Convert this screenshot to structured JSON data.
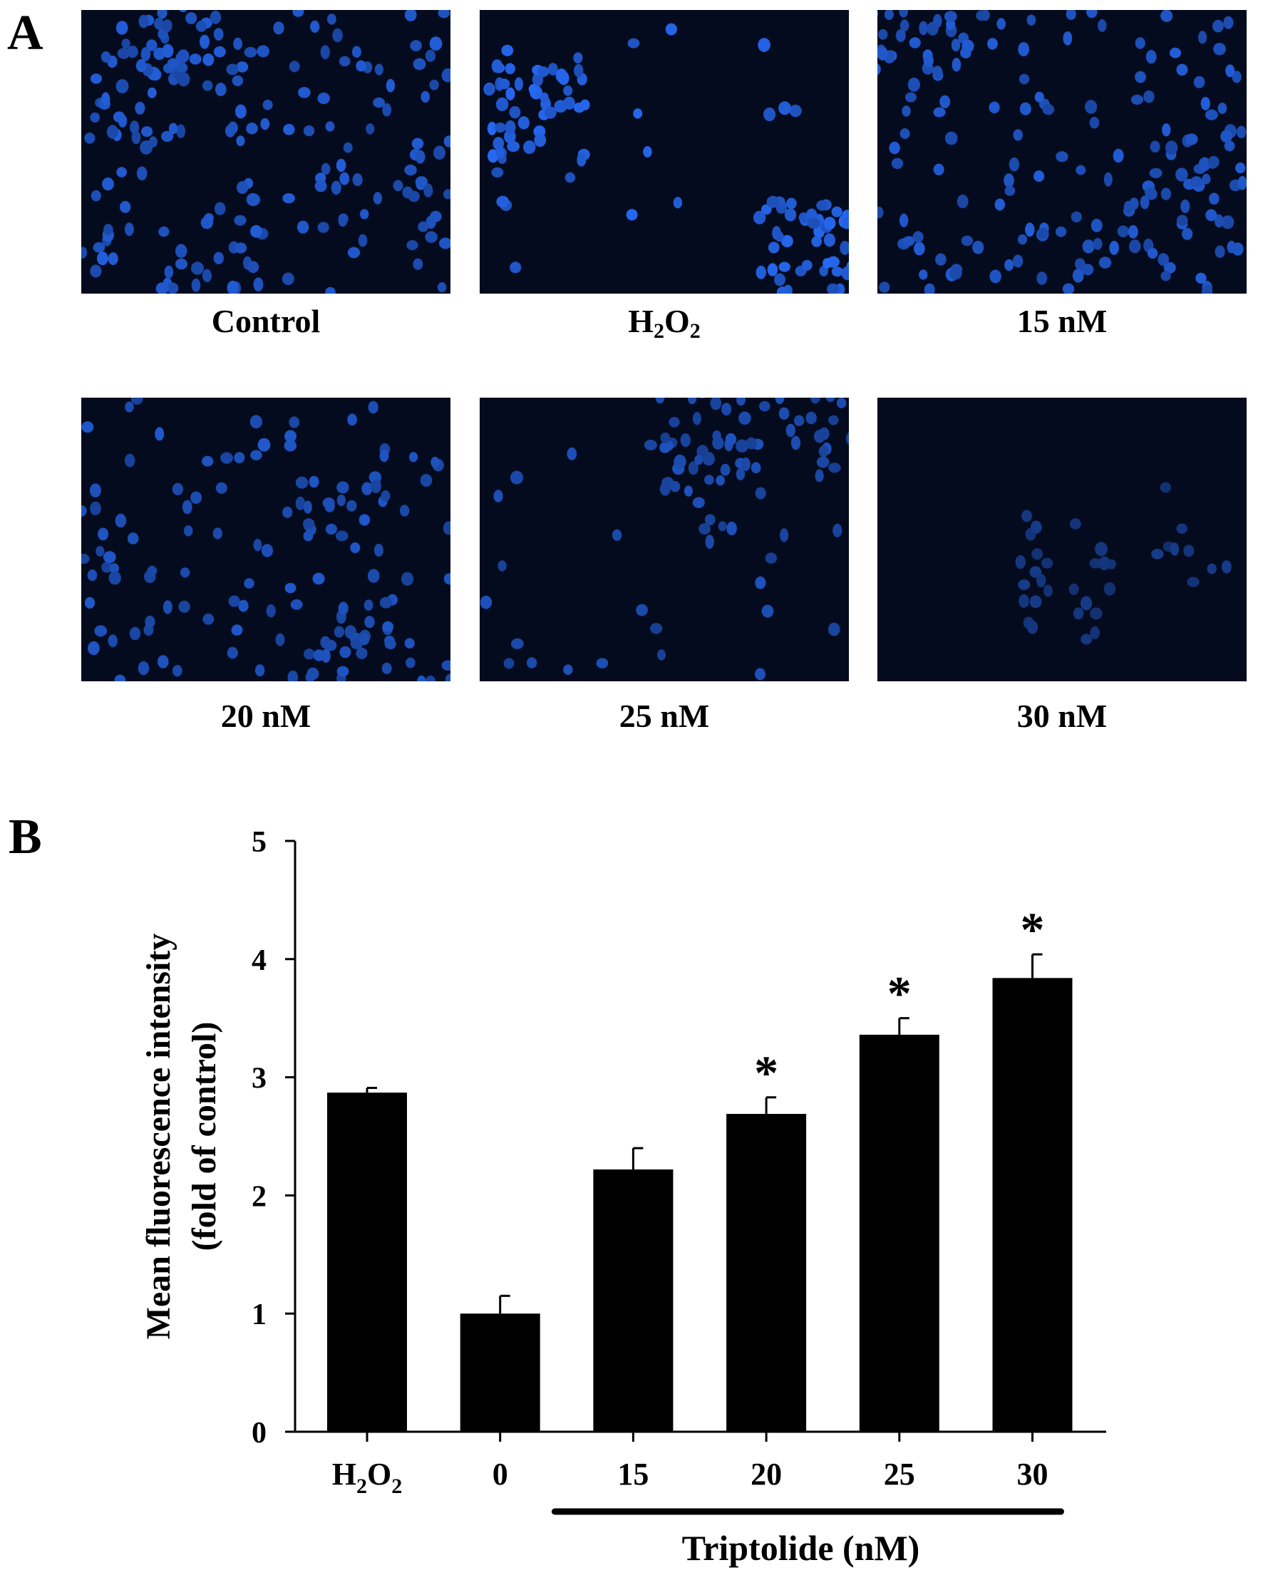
{
  "panels": {
    "a_letter": "A",
    "b_letter": "B"
  },
  "micrographs": [
    {
      "label": "Control",
      "label_sub": "",
      "label_tail": "",
      "cell_count": 190,
      "clustering": 0.25,
      "brightness": 0.85
    },
    {
      "label": "H",
      "label_sub": "2",
      "label_tail": "O",
      "label_sub2": "2",
      "cell_count": 110,
      "clustering": 0.85,
      "brightness": 0.95
    },
    {
      "label": "15 nM",
      "label_sub": "",
      "label_tail": "",
      "cell_count": 175,
      "clustering": 0.3,
      "brightness": 0.85
    },
    {
      "label": "20 nM",
      "label_sub": "",
      "label_tail": "",
      "cell_count": 140,
      "clustering": 0.3,
      "brightness": 0.8
    },
    {
      "label": "25 nM",
      "label_sub": "",
      "label_tail": "",
      "cell_count": 95,
      "clustering": 0.75,
      "brightness": 0.75
    },
    {
      "label": "30 nM",
      "label_sub": "",
      "label_tail": "",
      "cell_count": 35,
      "clustering": 0.9,
      "brightness": 0.55
    }
  ],
  "chart_data": {
    "type": "bar",
    "categories": [
      "H2O2",
      "0",
      "15",
      "20",
      "25",
      "30"
    ],
    "category_labels": [
      {
        "main": "H",
        "sub": "2",
        "main2": "O",
        "sub2": "2"
      },
      {
        "main": "0"
      },
      {
        "main": "15"
      },
      {
        "main": "20"
      },
      {
        "main": "25"
      },
      {
        "main": "30"
      }
    ],
    "values": [
      2.87,
      1.0,
      2.22,
      2.69,
      3.36,
      3.84
    ],
    "errors": [
      0.04,
      0.15,
      0.18,
      0.14,
      0.14,
      0.2
    ],
    "significant": [
      false,
      false,
      false,
      true,
      true,
      true
    ],
    "significance_mark": "*",
    "ylabel_line1": "Mean fluorescence intensity",
    "ylabel_line2": "(fold of control)",
    "xlabel": "",
    "group_label": "Triptolide (nM)",
    "group_span": [
      "15",
      "30"
    ],
    "ylim": [
      0,
      5
    ],
    "yticks": [
      "0",
      "1",
      "2",
      "3",
      "4",
      "5"
    ],
    "bar_color": "#000000",
    "grid": false
  }
}
